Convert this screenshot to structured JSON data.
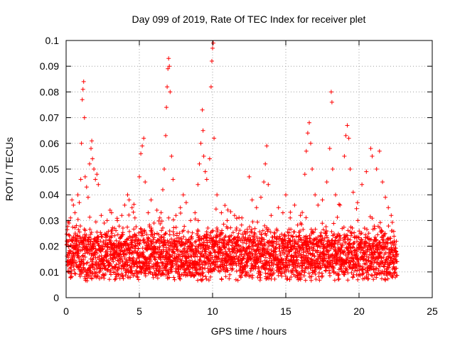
{
  "chart_data": {
    "type": "scatter",
    "title": "Day 099 of 2019, Rate Of TEC Index for receiver plet",
    "xlabel": "GPS time / hours",
    "ylabel": "ROTI / TECUs",
    "xlim": [
      0,
      25
    ],
    "ylim": [
      0,
      0.1
    ],
    "xticks": [
      0,
      5,
      10,
      15,
      20,
      25
    ],
    "xtick_labels": [
      "0",
      "5",
      "10",
      "15",
      "20",
      "25"
    ],
    "yticks": [
      0,
      0.01,
      0.02,
      0.03,
      0.04,
      0.05,
      0.06,
      0.07,
      0.08,
      0.09,
      0.1
    ],
    "ytick_labels": [
      "0",
      "0.01",
      "0.02",
      "0.03",
      "0.04",
      "0.05",
      "0.06",
      "0.07",
      "0.08",
      "0.09",
      "0.1"
    ],
    "grid": true,
    "marker": "+",
    "color": "#ff0000",
    "series": [
      {
        "name": "ROTI",
        "points": [
          [
            0.2,
            0.029
          ],
          [
            0.3,
            0.031
          ],
          [
            0.4,
            0.038
          ],
          [
            0.5,
            0.036
          ],
          [
            0.6,
            0.033
          ],
          [
            0.7,
            0.028
          ],
          [
            0.8,
            0.04
          ],
          [
            0.9,
            0.037
          ],
          [
            1.0,
            0.046
          ],
          [
            1.05,
            0.06
          ],
          [
            1.1,
            0.077
          ],
          [
            1.15,
            0.081
          ],
          [
            1.2,
            0.084
          ],
          [
            1.25,
            0.07
          ],
          [
            1.3,
            0.047
          ],
          [
            1.4,
            0.043
          ],
          [
            1.5,
            0.039
          ],
          [
            1.6,
            0.052
          ],
          [
            1.7,
            0.058
          ],
          [
            1.75,
            0.061
          ],
          [
            1.8,
            0.054
          ],
          [
            1.9,
            0.05
          ],
          [
            2.0,
            0.046
          ],
          [
            2.1,
            0.048
          ],
          [
            2.2,
            0.044
          ],
          [
            2.4,
            0.032
          ],
          [
            2.6,
            0.029
          ],
          [
            2.8,
            0.03
          ],
          [
            3.0,
            0.034
          ],
          [
            3.1,
            0.033
          ],
          [
            3.3,
            0.027
          ],
          [
            3.5,
            0.03
          ],
          [
            3.8,
            0.032
          ],
          [
            4.0,
            0.036
          ],
          [
            4.2,
            0.04
          ],
          [
            4.3,
            0.038
          ],
          [
            4.5,
            0.035
          ],
          [
            4.7,
            0.031
          ],
          [
            5.0,
            0.047
          ],
          [
            5.1,
            0.056
          ],
          [
            5.2,
            0.059
          ],
          [
            5.3,
            0.062
          ],
          [
            5.4,
            0.045
          ],
          [
            5.6,
            0.033
          ],
          [
            5.8,
            0.038
          ],
          [
            6.0,
            0.029
          ],
          [
            6.2,
            0.034
          ],
          [
            6.4,
            0.031
          ],
          [
            6.6,
            0.042
          ],
          [
            6.7,
            0.05
          ],
          [
            6.8,
            0.063
          ],
          [
            6.85,
            0.074
          ],
          [
            6.9,
            0.082
          ],
          [
            6.95,
            0.089
          ],
          [
            7.0,
            0.093
          ],
          [
            7.05,
            0.09
          ],
          [
            7.1,
            0.08
          ],
          [
            7.2,
            0.055
          ],
          [
            7.3,
            0.046
          ],
          [
            7.5,
            0.032
          ],
          [
            7.8,
            0.035
          ],
          [
            8.0,
            0.04
          ],
          [
            8.2,
            0.037
          ],
          [
            8.5,
            0.03
          ],
          [
            8.8,
            0.033
          ],
          [
            9.0,
            0.044
          ],
          [
            9.1,
            0.052
          ],
          [
            9.2,
            0.06
          ],
          [
            9.3,
            0.073
          ],
          [
            9.35,
            0.065
          ],
          [
            9.4,
            0.055
          ],
          [
            9.5,
            0.049
          ],
          [
            9.6,
            0.046
          ],
          [
            9.8,
            0.054
          ],
          [
            9.9,
            0.082
          ],
          [
            9.95,
            0.092
          ],
          [
            10.0,
            0.097
          ],
          [
            10.05,
            0.099
          ],
          [
            10.1,
            0.062
          ],
          [
            10.3,
            0.04
          ],
          [
            10.6,
            0.033
          ],
          [
            11.0,
            0.03
          ],
          [
            11.5,
            0.032
          ],
          [
            12.0,
            0.031
          ],
          [
            12.5,
            0.047
          ],
          [
            12.7,
            0.038
          ],
          [
            13.0,
            0.035
          ],
          [
            13.3,
            0.039
          ],
          [
            13.5,
            0.045
          ],
          [
            13.6,
            0.052
          ],
          [
            13.7,
            0.059
          ],
          [
            13.8,
            0.044
          ],
          [
            14.0,
            0.032
          ],
          [
            14.5,
            0.035
          ],
          [
            14.8,
            0.033
          ],
          [
            15.0,
            0.04
          ],
          [
            15.3,
            0.031
          ],
          [
            15.6,
            0.036
          ],
          [
            16.0,
            0.032
          ],
          [
            16.3,
            0.048
          ],
          [
            16.4,
            0.057
          ],
          [
            16.5,
            0.064
          ],
          [
            16.6,
            0.068
          ],
          [
            16.7,
            0.06
          ],
          [
            16.8,
            0.05
          ],
          [
            17.0,
            0.04
          ],
          [
            17.2,
            0.036
          ],
          [
            17.5,
            0.038
          ],
          [
            17.8,
            0.045
          ],
          [
            18.0,
            0.058
          ],
          [
            18.1,
            0.08
          ],
          [
            18.15,
            0.076
          ],
          [
            18.2,
            0.05
          ],
          [
            18.4,
            0.04
          ],
          [
            18.7,
            0.036
          ],
          [
            19.0,
            0.055
          ],
          [
            19.1,
            0.063
          ],
          [
            19.2,
            0.067
          ],
          [
            19.3,
            0.062
          ],
          [
            19.4,
            0.05
          ],
          [
            19.6,
            0.041
          ],
          [
            19.9,
            0.037
          ],
          [
            20.2,
            0.044
          ],
          [
            20.5,
            0.049
          ],
          [
            20.8,
            0.058
          ],
          [
            20.9,
            0.055
          ],
          [
            21.2,
            0.05
          ],
          [
            21.4,
            0.057
          ],
          [
            21.6,
            0.045
          ],
          [
            21.8,
            0.039
          ],
          [
            22.0,
            0.035
          ],
          [
            22.2,
            0.032
          ]
        ]
      }
    ]
  }
}
